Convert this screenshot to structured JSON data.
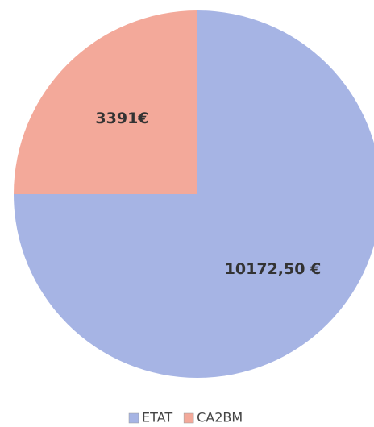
{
  "chart_data": {
    "type": "pie",
    "categories": [
      "ETAT",
      "CA2BM"
    ],
    "values": [
      10172.5,
      3391
    ],
    "value_labels": [
      "10172,50 €",
      "3391€"
    ],
    "colors": [
      "#a6b4e4",
      "#f3a99a"
    ],
    "legend": "bottom"
  }
}
